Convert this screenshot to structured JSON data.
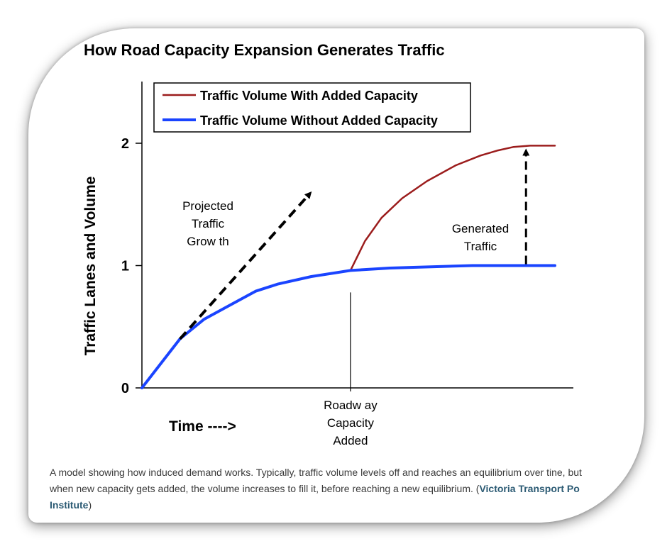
{
  "chart_data": {
    "type": "line",
    "title": "How Road Capacity Expansion Generates Traffic",
    "ylabel": "Traffic Lanes and Volume",
    "xlabel": "Time ---->",
    "yticks": [
      "0",
      "1",
      "2"
    ],
    "ylim": [
      0,
      2.5
    ],
    "xlim": [
      0,
      1
    ],
    "legend": {
      "position": "top-left",
      "items": [
        {
          "name": "Traffic Volume With Added Capacity",
          "color": "#9b1c1c"
        },
        {
          "name": "Traffic Volume Without Added Capacity",
          "color": "#1a44ff"
        }
      ]
    },
    "series": [
      {
        "name": "Traffic Volume Without Added Capacity",
        "color": "#1a44ff",
        "x": [
          0,
          0.092,
          0.15,
          0.215,
          0.275,
          0.33,
          0.41,
          0.505,
          0.6,
          0.7,
          0.8,
          0.95,
          1.0
        ],
        "y": [
          0,
          0.4,
          0.56,
          0.68,
          0.79,
          0.85,
          0.91,
          0.96,
          0.98,
          0.99,
          1.0,
          1.0,
          1.0
        ]
      },
      {
        "name": "Traffic Volume With Added Capacity",
        "color": "#9b1c1c",
        "x": [
          0.505,
          0.54,
          0.58,
          0.63,
          0.69,
          0.76,
          0.82,
          0.86,
          0.9,
          0.94,
          0.97,
          1.0
        ],
        "y": [
          0.96,
          1.2,
          1.39,
          1.55,
          1.69,
          1.82,
          1.9,
          1.94,
          1.97,
          1.98,
          1.98,
          1.98
        ]
      }
    ],
    "annotations": {
      "projected_growth": {
        "label": [
          "Projected",
          "Traffic",
          "Grow th"
        ],
        "from": [
          0.092,
          0.4
        ],
        "to": [
          0.41,
          1.6
        ]
      },
      "generated_traffic": {
        "label": [
          "Generated",
          "Traffic"
        ],
        "from": [
          0.93,
          1.0
        ],
        "to": [
          0.93,
          1.98
        ]
      },
      "capacity_added": {
        "label": [
          "Roadw ay",
          "Capacity",
          "Added"
        ],
        "x": 0.505,
        "y_top": 0.85
      }
    }
  },
  "caption": {
    "line1": "A model showing how induced demand works. Typically, traffic volume levels off and reaches an equilibrium over tine, but",
    "line2_before": "when new capacity gets added, the volume increases to fill it, before reaching a new equilibrium. (",
    "credit_part1": "Victoria Transport Po",
    "credit_part2": "Institute",
    "close_paren": ")"
  }
}
